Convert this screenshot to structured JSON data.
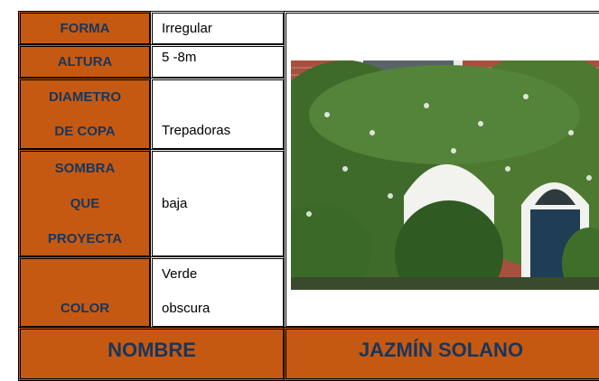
{
  "rows": [
    {
      "label": [
        "FORMA"
      ],
      "value": [
        "Irregular"
      ]
    },
    {
      "label": [
        "ALTURA"
      ],
      "value": [
        "5 -8m"
      ]
    },
    {
      "label": [
        "DIAMETRO",
        "DE COPA"
      ],
      "value": [
        "Trepadoras"
      ]
    },
    {
      "label": [
        "SOMBRA",
        "QUE",
        "PROYECTA"
      ],
      "value": [
        "baja"
      ]
    },
    {
      "label": [
        "COLOR"
      ],
      "value": [
        "Verde",
        "obscura"
      ]
    }
  ],
  "footer": {
    "label": "NOMBRE",
    "value": "JAZMÍN SOLANO"
  }
}
